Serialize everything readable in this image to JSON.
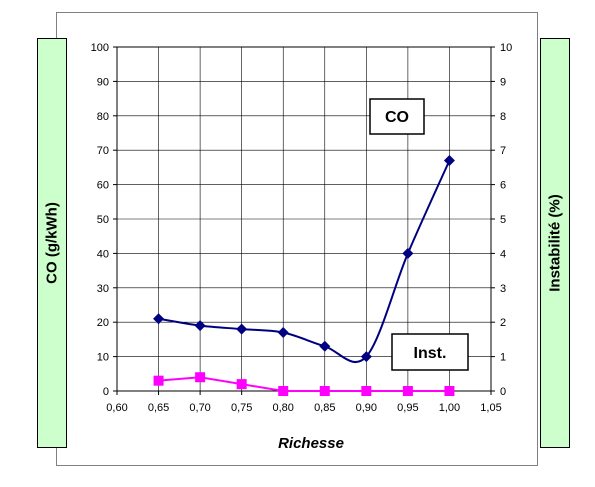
{
  "chart_data": {
    "type": "line",
    "xlabel": "Richesse",
    "y_left_label": "CO (g/kWh)",
    "y_right_label": "Instabilité (%)",
    "x_ticks": [
      "0,60",
      "0,65",
      "0,70",
      "0,75",
      "0,80",
      "0,85",
      "0,90",
      "0,95",
      "1,00",
      "1,05"
    ],
    "x_range": [
      0.6,
      1.05
    ],
    "y_left_ticks": [
      "0",
      "10",
      "20",
      "30",
      "40",
      "50",
      "60",
      "70",
      "80",
      "90",
      "100"
    ],
    "y_left_range": [
      0,
      100
    ],
    "y_right_ticks": [
      "0",
      "1",
      "2",
      "3",
      "4",
      "5",
      "6",
      "7",
      "8",
      "9",
      "10"
    ],
    "y_right_range": [
      0,
      10
    ],
    "grid": true,
    "x": [
      0.65,
      0.7,
      0.75,
      0.8,
      0.85,
      0.9,
      0.95,
      1.0
    ],
    "series": [
      {
        "name": "CO",
        "axis": "left",
        "color": "#000080",
        "marker": "diamond",
        "values": [
          21,
          19,
          18,
          17,
          13,
          10,
          40,
          67
        ]
      },
      {
        "name": "Inst.",
        "axis": "right",
        "color": "#ff00ff",
        "marker": "square",
        "values": [
          0.3,
          0.4,
          0.2,
          0.0,
          0.0,
          0.0,
          0.0,
          0.0
        ]
      }
    ]
  }
}
